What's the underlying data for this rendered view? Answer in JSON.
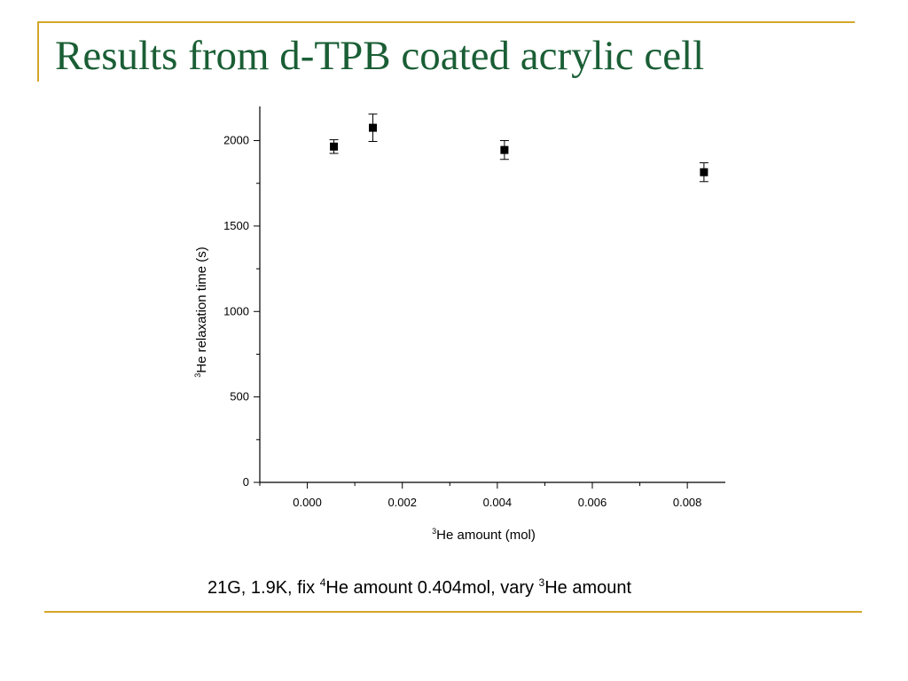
{
  "slide": {
    "title": "Results from d-TPB coated acrylic cell",
    "accent_color": "#d4a52a",
    "title_color": "#1a5e35"
  },
  "caption": {
    "part1": "21G, 1.9K, fix ",
    "sup1": "4",
    "part2": "He amount 0.404mol, vary ",
    "sup2": "3",
    "part3": "He amount"
  },
  "chart_data": {
    "type": "scatter",
    "xlabel_sup": "3",
    "xlabel": "He amount (mol)",
    "ylabel_sup": "3",
    "ylabel": "He relaxation time (s)",
    "xlim": [
      -0.001,
      0.0088
    ],
    "ylim": [
      0,
      2200
    ],
    "x_ticks": [
      0.0,
      0.002,
      0.004,
      0.006,
      0.008
    ],
    "x_tick_labels": [
      "0.000",
      "0.002",
      "0.004",
      "0.006",
      "0.008"
    ],
    "y_ticks": [
      0,
      500,
      1000,
      1500,
      2000
    ],
    "y_tick_labels": [
      "0",
      "500",
      "1000",
      "1500",
      "2000"
    ],
    "grid": false,
    "points": [
      {
        "x": 0.00056,
        "y": 1965,
        "err": 40
      },
      {
        "x": 0.00138,
        "y": 2075,
        "err": 80
      },
      {
        "x": 0.00415,
        "y": 1945,
        "err": 55
      },
      {
        "x": 0.00835,
        "y": 1815,
        "err": 55
      }
    ]
  }
}
